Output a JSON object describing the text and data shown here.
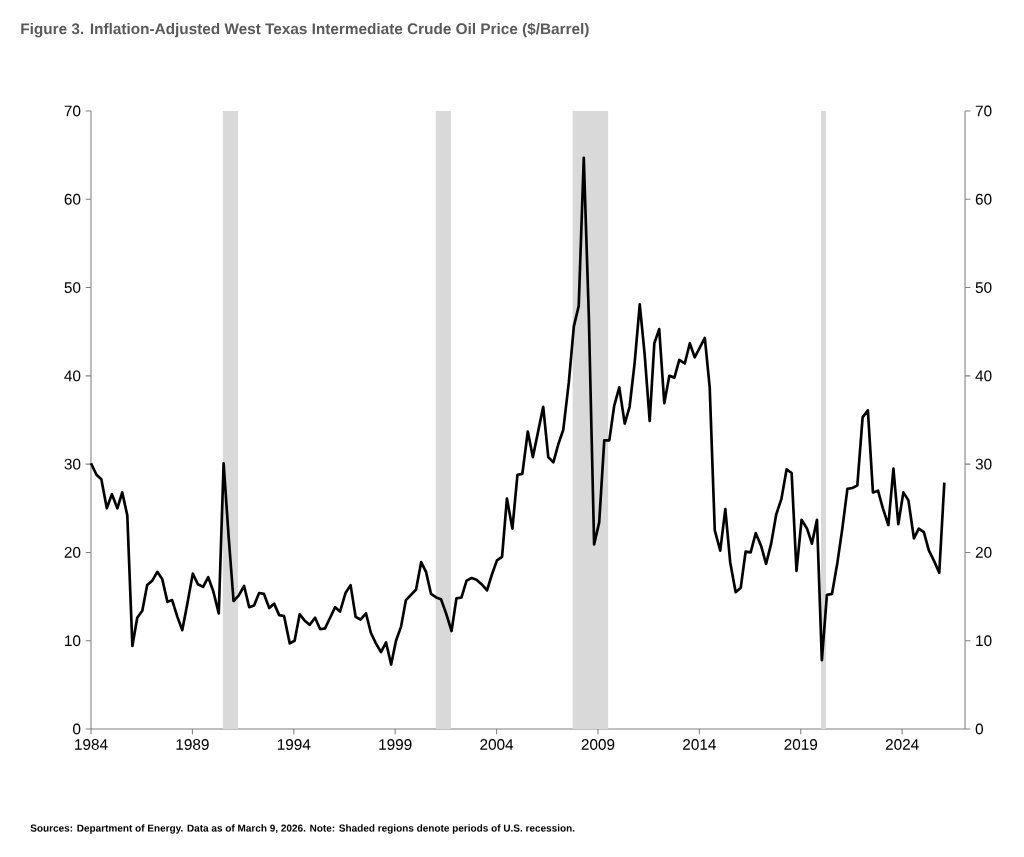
{
  "chart_data": {
    "type": "line",
    "title": "Figure 3. Inflation-Adjusted West Texas Intermediate Crude Oil Price ($/Barrel)",
    "annotations": [
      "Sources: Department of Energy. Data as of March 9, 2026. Note: Shaded regions denote periods of U.S. recession."
    ],
    "x": [
      1984.0,
      1984.27,
      1984.51,
      1984.78,
      1985.03,
      1985.3,
      1985.54,
      1985.79,
      1986.04,
      1986.28,
      1986.53,
      1986.77,
      1987.02,
      1987.27,
      1987.51,
      1987.77,
      1988.0,
      1988.26,
      1988.5,
      1988.75,
      1989.02,
      1989.27,
      1989.53,
      1989.78,
      1990.03,
      1990.3,
      1990.54,
      1990.79,
      1991.03,
      1991.28,
      1991.55,
      1991.8,
      1992.04,
      1992.29,
      1992.53,
      1992.79,
      1993.03,
      1993.28,
      1993.52,
      1993.8,
      1994.04,
      1994.29,
      1994.53,
      1994.78,
      1995.05,
      1995.3,
      1995.54,
      1995.79,
      1996.04,
      1996.28,
      1996.55,
      1996.8,
      1997.05,
      1997.29,
      1997.56,
      1997.8,
      1998.05,
      1998.3,
      1998.55,
      1998.8,
      1999.04,
      1999.29,
      1999.53,
      1999.78,
      2000.03,
      2000.28,
      2000.52,
      2000.77,
      2001.02,
      2001.26,
      2001.51,
      2001.78,
      2002.02,
      2002.27,
      2002.52,
      2002.77,
      2003.01,
      2003.26,
      2003.53,
      2003.77,
      2004.02,
      2004.27,
      2004.51,
      2004.78,
      2005.03,
      2005.27,
      2005.54,
      2005.79,
      2006.04,
      2006.3,
      2006.55,
      2006.8,
      2007.05,
      2007.29,
      2007.56,
      2007.81,
      2008.05,
      2008.3,
      2008.55,
      2008.81,
      2009.06,
      2009.31,
      2009.56,
      2009.8,
      2010.05,
      2010.32,
      2010.56,
      2010.81,
      2011.06,
      2011.3,
      2011.55,
      2011.78,
      2012.02,
      2012.27,
      2012.52,
      2012.77,
      2013.01,
      2013.28,
      2013.53,
      2013.77,
      2014.02,
      2014.27,
      2014.51,
      2014.76,
      2015.03,
      2015.28,
      2015.52,
      2015.79,
      2016.04,
      2016.28,
      2016.53,
      2016.78,
      2017.05,
      2017.29,
      2017.54,
      2017.79,
      2018.05,
      2018.3,
      2018.55,
      2018.79,
      2019.04,
      2019.31,
      2019.55,
      2019.8,
      2020.04,
      2020.29,
      2020.54,
      2020.81,
      2021.05,
      2021.3,
      2021.55,
      2021.79,
      2022.05,
      2022.31,
      2022.56,
      2022.81,
      2023.05,
      2023.32,
      2023.57,
      2023.81,
      2024.06,
      2024.31,
      2024.58,
      2024.82,
      2025.07,
      2025.32,
      2025.56,
      2025.83,
      2026.08
    ],
    "values": [
      30.1,
      28.8,
      28.3,
      25.0,
      26.6,
      25.0,
      26.8,
      24.2,
      9.4,
      12.6,
      13.4,
      16.3,
      16.8,
      17.8,
      17.0,
      14.4,
      14.6,
      12.7,
      11.2,
      14.2,
      17.6,
      16.4,
      16.1,
      17.2,
      15.6,
      13.1,
      30.1,
      21.7,
      14.5,
      15.1,
      16.2,
      13.8,
      14.0,
      15.4,
      15.3,
      13.7,
      14.2,
      12.9,
      12.8,
      9.7,
      10.0,
      13.0,
      12.3,
      11.8,
      12.6,
      11.3,
      11.4,
      12.6,
      13.8,
      13.3,
      15.4,
      16.3,
      12.7,
      12.4,
      13.1,
      10.9,
      9.7,
      8.7,
      9.8,
      7.3,
      10.0,
      11.6,
      14.6,
      15.2,
      15.8,
      18.9,
      17.8,
      15.3,
      14.9,
      14.7,
      13.1,
      11.1,
      14.8,
      14.9,
      16.8,
      17.1,
      16.9,
      16.4,
      15.7,
      17.5,
      19.1,
      19.5,
      26.1,
      22.7,
      28.8,
      28.9,
      33.7,
      30.8,
      33.6,
      36.5,
      30.8,
      30.2,
      32.3,
      33.9,
      39.2,
      45.6,
      47.9,
      64.7,
      46.7,
      20.9,
      23.4,
      32.7,
      32.7,
      36.6,
      38.7,
      34.6,
      36.5,
      41.5,
      48.1,
      42.5,
      34.9,
      43.7,
      45.3,
      36.9,
      40.0,
      39.8,
      41.8,
      41.4,
      43.7,
      42.1,
      43.2,
      44.3,
      38.7,
      22.5,
      20.2,
      24.9,
      18.9,
      15.5,
      16.0,
      20.1,
      20.0,
      22.2,
      20.7,
      18.7,
      21.0,
      24.3,
      26.1,
      29.4,
      29.0,
      17.9,
      23.7,
      22.7,
      21.0,
      23.7,
      7.8,
      15.2,
      15.3,
      18.9,
      22.7,
      27.2,
      27.3,
      27.6,
      35.3,
      36.1,
      26.8,
      27.0,
      25.0,
      23.1,
      29.5,
      23.2,
      26.8,
      25.9,
      21.6,
      22.7,
      22.3,
      20.2,
      19.1,
      17.7,
      27.9
    ],
    "color": "#000000",
    "xlim": [
      1984,
      2027.1
    ],
    "xticks": [
      1984,
      1989,
      1994,
      1999,
      2004,
      2009,
      2014,
      2019,
      2024
    ],
    "ylim": [
      0,
      70
    ],
    "yticks": [
      0,
      10,
      20,
      30,
      40,
      50,
      60,
      70
    ],
    "y2lim": [
      0,
      70
    ],
    "y2ticks": [
      0,
      10,
      20,
      30,
      40,
      50,
      60,
      70
    ],
    "bands": [
      {
        "axis": "x",
        "from": 1990.5,
        "to": 1991.25,
        "color": "#d9d9d9"
      },
      {
        "axis": "x",
        "from": 2001.0,
        "to": 2001.75,
        "color": "#d9d9d9"
      },
      {
        "axis": "x",
        "from": 2007.75,
        "to": 2009.5,
        "color": "#d9d9d9"
      },
      {
        "axis": "x",
        "from": 2020.0,
        "to": 2020.25,
        "color": "#d9d9d9"
      }
    ]
  }
}
